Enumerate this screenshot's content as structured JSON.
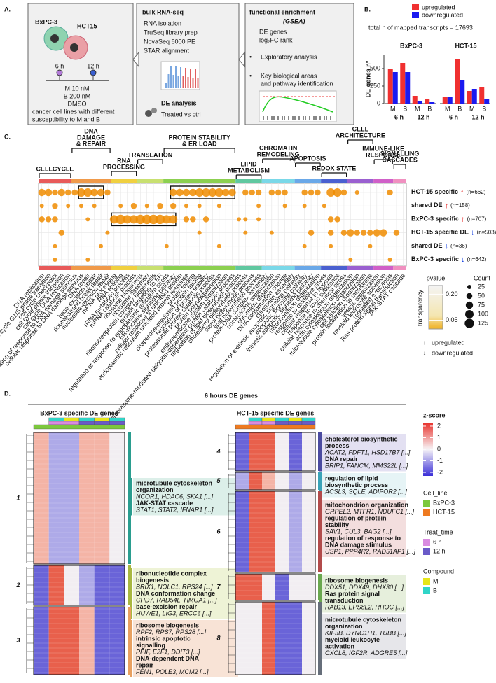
{
  "panel_a": {
    "label": "A.",
    "cells": [
      "BxPC-3",
      "HCT15"
    ],
    "times": [
      "6 h",
      "12 h"
    ],
    "treatments": [
      "M 10 nM",
      "B 200 nM",
      "DMSO"
    ],
    "caption": [
      "cancer cell lines with different",
      "susceptibility to M and B"
    ],
    "rnaseq": {
      "title": "bulk RNA-seq",
      "steps": [
        "RNA isolation",
        "TruSeq library prep",
        "NovaSeq 6000 PE",
        "STAR alignment"
      ],
      "de_title": "DE analysis",
      "de_text": "Treated vs ctrl"
    },
    "enrichment": {
      "title": "functional enrichment",
      "subtitle": "(GSEA)",
      "lines": [
        "DE genes",
        "log₂FC rank"
      ],
      "bullets": [
        [
          "Exploratory analysis"
        ],
        [
          "Key biological areas",
          "and pathway identification"
        ]
      ]
    }
  },
  "chart_data": {
    "type": "bar",
    "label": "B.",
    "note": "total n of mapped transcripts = 17693",
    "ylabel": "DE genes n°",
    "panels": [
      "BxPC-3",
      "HCT-15"
    ],
    "time_groups": [
      "6 h",
      "12 h",
      "6 h",
      "12 h"
    ],
    "categories": [
      "M",
      "B",
      "M",
      "B",
      "M",
      "B",
      "M",
      "B"
    ],
    "series": [
      {
        "name": "upregulated",
        "color": "#f03030",
        "values": [
          500,
          580,
          110,
          60,
          90,
          630,
          180,
          230
        ]
      },
      {
        "name": "downregulated",
        "color": "#1a1af0",
        "values": [
          450,
          450,
          40,
          20,
          90,
          340,
          210,
          70
        ]
      }
    ],
    "ylim": [
      0,
      700
    ],
    "yticks": [
      0,
      250,
      500
    ]
  },
  "panel_c": {
    "label": "C.",
    "dot_color": "#f08c00",
    "groups": [
      [
        "CELLCYCLE"
      ],
      [
        "DNA",
        "DAMAGE",
        "& REPAIR"
      ],
      [
        "RNA",
        "PROCESSING"
      ],
      [
        "TRANSLATION"
      ],
      [
        "PROTEIN STABILITY",
        "& ER LOAD"
      ],
      [
        "LIPID",
        "METABOLISM"
      ],
      [
        "CHROMATIN",
        "REMODELING"
      ],
      [
        "APOPTOSIS"
      ],
      [
        "REDOX STATE"
      ],
      [
        "CELL",
        "ARCHITECTURE"
      ],
      [
        "IMMUNE-LIKE",
        "RESPONSE"
      ],
      [
        "SIGNALLING",
        "CASCADES"
      ]
    ],
    "terms": [
      "DNA replication",
      "cell cycle G1/S phase transition",
      "cell cycle checkpoint",
      "cell cycle phase transition",
      "cell cycle DNA replication",
      "regulation of response to DNA damage stimulus",
      "cellular response to DNA damage stimulus",
      "DNA repair",
      "base-excision repair",
      "double-strand break repair",
      "nucleotide-excision repair",
      "mRNA processing",
      "RNA splicing",
      "rRNA metabolic process",
      "mRNA catabolic process",
      "ribosome biogenesis",
      "ribosome assembly",
      "ribonucleoprotein complex biogenesis",
      "protein targeting to ER",
      "regulation of response to endoplasmic reticulum stress",
      "ER-nucleus signaling pathway",
      "cellular response to unfolded protein",
      "endoplasmic reticulum unfolded protein response",
      "protein folding",
      "chaperone-mediated protein folding",
      "regulation of protein stability",
      "proteasomal protein catabolic process",
      "protein polyubiquitination",
      "endomembrane system organization",
      "proteasome-mediated ubiquitin-dependent protein catabolic process",
      "regulation of lipid biosynthetic process",
      "cholesterol biosynthetic process",
      "sterol biosynthetic process",
      "lipid biosynthetic process",
      "protein-DNA complex assembly",
      "nucleosome organization",
      "chromatin organization",
      "DNA conformation change",
      "chromatin assembly",
      "regulation of extrinsic apoptotic signaling pathway",
      "apoptotic signaling pathway",
      "intrinsic apoptotic signaling pathway",
      "mitochondrion organization",
      "response to oxidative stress",
      "cellular response to hypoxia",
      "response to toxic substance",
      "cellular response to chemical stress",
      "actin cytoskeleton organization",
      "microtubule cytoskeleton organization",
      "cell junction organization",
      "protein localization to membrane",
      "vesicle organization",
      "myeloid leukocyte activation",
      "regulated exocytosis",
      "Ras protein signal transduction",
      "JAK-STAT cascade"
    ],
    "rows": [
      {
        "label": "HCT-15 specific",
        "arrow": "↑",
        "arrow_color": "#e00000",
        "n": "(n=662)",
        "dots": [
          [
            0,
            75
          ],
          [
            1,
            75
          ],
          [
            2,
            50
          ],
          [
            3,
            75
          ],
          [
            4,
            50
          ],
          [
            5,
            50
          ],
          [
            6,
            100
          ],
          [
            7,
            100
          ],
          [
            8,
            75
          ],
          [
            9,
            75
          ],
          [
            10,
            50
          ],
          [
            20,
            75
          ],
          [
            21,
            75
          ],
          [
            22,
            75
          ],
          [
            23,
            75
          ],
          [
            24,
            100
          ],
          [
            25,
            100
          ],
          [
            26,
            100
          ],
          [
            27,
            100
          ],
          [
            28,
            75
          ],
          [
            29,
            75
          ],
          [
            31,
            50
          ],
          [
            32,
            50
          ],
          [
            33,
            50
          ],
          [
            35,
            50
          ],
          [
            36,
            50
          ],
          [
            37,
            50
          ],
          [
            40,
            50
          ],
          [
            41,
            50
          ],
          [
            42,
            50
          ],
          [
            44,
            100
          ],
          [
            45,
            100
          ],
          [
            46,
            50
          ],
          [
            48,
            25
          ],
          [
            53,
            50
          ]
        ]
      },
      {
        "label": "shared DE",
        "arrow": "↑",
        "arrow_color": "#e00000",
        "n": "(n=158)",
        "dots": [
          [
            0,
            25
          ],
          [
            2,
            50
          ],
          [
            4,
            25
          ],
          [
            6,
            25
          ],
          [
            8,
            25
          ],
          [
            12,
            25
          ],
          [
            14,
            50
          ],
          [
            16,
            25
          ],
          [
            18,
            50
          ],
          [
            20,
            50
          ],
          [
            22,
            25
          ],
          [
            24,
            25
          ],
          [
            27,
            25
          ],
          [
            33,
            25
          ],
          [
            37,
            25
          ],
          [
            40,
            25
          ],
          [
            43,
            25
          ]
        ]
      },
      {
        "label": "BxPC-3 specific",
        "arrow": "↑",
        "arrow_color": "#e00000",
        "n": "(n=707)",
        "dots": [
          [
            0,
            50
          ],
          [
            1,
            50
          ],
          [
            2,
            50
          ],
          [
            7,
            25
          ],
          [
            11,
            100
          ],
          [
            12,
            125
          ],
          [
            13,
            100
          ],
          [
            14,
            100
          ],
          [
            15,
            125
          ],
          [
            16,
            125
          ],
          [
            17,
            125
          ],
          [
            18,
            125
          ],
          [
            19,
            100
          ],
          [
            20,
            100
          ],
          [
            22,
            50
          ],
          [
            23,
            50
          ],
          [
            25,
            50
          ],
          [
            30,
            25
          ],
          [
            31,
            25
          ],
          [
            33,
            25
          ],
          [
            44,
            50
          ],
          [
            45,
            50
          ]
        ]
      },
      {
        "label": "HCT-15 specific DE",
        "arrow": "↓",
        "arrow_color": "#0030e0",
        "n": "(n=503)",
        "dots": [
          [
            3,
            50
          ],
          [
            10,
            25
          ],
          [
            24,
            25
          ],
          [
            31,
            25
          ],
          [
            35,
            25
          ],
          [
            41,
            50
          ],
          [
            44,
            50
          ],
          [
            46,
            50
          ],
          [
            47,
            75
          ],
          [
            48,
            50
          ],
          [
            49,
            50
          ],
          [
            50,
            50
          ],
          [
            51,
            75
          ],
          [
            52,
            75
          ],
          [
            54,
            50
          ]
        ]
      },
      {
        "label": "shared DE",
        "arrow": "↓",
        "arrow_color": "#0030e0",
        "n": "(n=36)",
        "dots": [
          [
            2,
            25
          ],
          [
            9,
            25
          ],
          [
            19,
            25
          ],
          [
            27,
            25
          ],
          [
            40,
            25
          ],
          [
            44,
            25
          ],
          [
            50,
            25
          ]
        ]
      },
      {
        "label": "BxPC-3 specific",
        "arrow": "↓",
        "arrow_color": "#0030e0",
        "n": "(n=642)",
        "dots": [
          [
            2,
            25
          ],
          [
            7,
            25
          ],
          [
            47,
            25
          ],
          [
            53,
            25
          ]
        ]
      }
    ],
    "legend": {
      "pvalue_title": "pvalue",
      "transparency": "transparency",
      "pvalue_lim": [
        0,
        0.25
      ],
      "pvalue_ticks": [
        {
          "value": 0.2,
          "label": "0.20"
        },
        {
          "value": 0.05,
          "label": "0.05"
        }
      ],
      "count_title": "Count",
      "count_ticks": [
        25,
        50,
        75,
        100,
        125
      ],
      "up": {
        "arrow": "↑",
        "text": "upregulated"
      },
      "down": {
        "arrow": "↓",
        "text": "downregulated"
      }
    }
  },
  "panel_d": {
    "label": "D.",
    "title": "6 hours DE genes",
    "left": {
      "title": "BxPC-3 specific DE genes",
      "clusters": [
        {
          "number": "1",
          "annotations": [
            {
              "term": [
                "microtubule cytoskeleton",
                "organization"
              ],
              "genes": "NCOR1, HDAC6, SKA1 [...]"
            },
            {
              "term": [
                "JAK-STAT cascade"
              ],
              "genes": "STAT1, STAT2, IFNAR1 [...]"
            }
          ]
        },
        {
          "number": "2",
          "annotations": [
            {
              "term": [
                "ribonucleotide complex",
                "biogenesis"
              ],
              "genes": "BRIX1, NOLC1, RPS24 [...]"
            },
            {
              "term": [
                "DNA conformation change"
              ],
              "genes": "CHD7, RAD54L, HMGA1 [...]"
            },
            {
              "term": [
                "base-excision repair"
              ],
              "genes": "HUWE1, LIG3, ERCC6 [...]"
            }
          ]
        },
        {
          "number": "3",
          "annotations": [
            {
              "term": [
                "ribosome biogenesis"
              ],
              "genes": "RPF2, RPS7, RPS28 [...]"
            },
            {
              "term": [
                "intrinsic apoptotic",
                "signalling"
              ],
              "genes": "PPIF, E2F1, DDIT3 [...]"
            },
            {
              "term": [
                "DNA-dependent DNA",
                "repair"
              ],
              "genes": "FEN1, POLE3, MCM2 [...]"
            }
          ]
        }
      ]
    },
    "right": {
      "title": "HCT-15 specific DE genes",
      "clusters": [
        {
          "number": "4",
          "annotations": [
            {
              "term": [
                "cholesterol biosynthetic",
                "process"
              ],
              "genes": "ACAT2, FDFT1, HSD17B7 [...]"
            },
            {
              "term": [
                "DNA repair"
              ],
              "genes": "BRIP1, FANCM, MMS22L [...]"
            }
          ]
        },
        {
          "number": "5",
          "annotations": [
            {
              "term": [
                "regulation of lipid",
                "biosynthetic process"
              ],
              "genes": "ACSL3, SQLE, ADIPOR2 [...]"
            }
          ]
        },
        {
          "number": "6",
          "annotations": [
            {
              "term": [
                "mitochondrion organization"
              ],
              "genes": "GRPEL2, MTFR1, NDUFC1 [...]"
            },
            {
              "term": [
                "regulation of protein",
                "stability"
              ],
              "genes": "SAV1, CUL3, BAG2 [...]"
            },
            {
              "term": [
                "regulation of response to",
                "DNA damage stimulus"
              ],
              "genes": "USP1, PPP4R2, RAD51AP1 [...]"
            }
          ]
        },
        {
          "number": "7",
          "annotations": [
            {
              "term": [
                "ribosome biogenesis"
              ],
              "genes": "DDX51, DDX49, DHX30 [...]"
            },
            {
              "term": [
                "Ras protein signal",
                "transduction"
              ],
              "genes": "RAB13, EPS8L2, RHOC [...]"
            }
          ]
        },
        {
          "number": "8",
          "annotations": [
            {
              "term": [
                "microtubule cytoskeleton",
                "organization"
              ],
              "genes": "KIF3B, DYNC1H1, TUBB [...]"
            },
            {
              "term": [
                "myeloid leukocyte",
                "activation"
              ],
              "genes": "CXCL8, IGF2R, ADGRE5 [...]"
            }
          ]
        }
      ]
    },
    "legend": {
      "zscore_title": "z-score",
      "zlim": [
        -2.3,
        2.3
      ],
      "zticks": [
        2,
        1,
        0,
        -1,
        -2
      ],
      "groups": [
        {
          "title": "Cell_line",
          "items": [
            {
              "name": "BxPC-3",
              "color": "#7cc83c"
            },
            {
              "name": "HCT-15",
              "color": "#ee7a20"
            }
          ]
        },
        {
          "title": "Treat_time",
          "items": [
            {
              "name": "6 h",
              "color": "#d98be0"
            },
            {
              "name": "12 h",
              "color": "#6a5ac8"
            }
          ]
        },
        {
          "title": "Compound",
          "items": [
            {
              "name": "M",
              "color": "#e6e619"
            },
            {
              "name": "B",
              "color": "#30d5c8"
            }
          ]
        }
      ]
    }
  }
}
